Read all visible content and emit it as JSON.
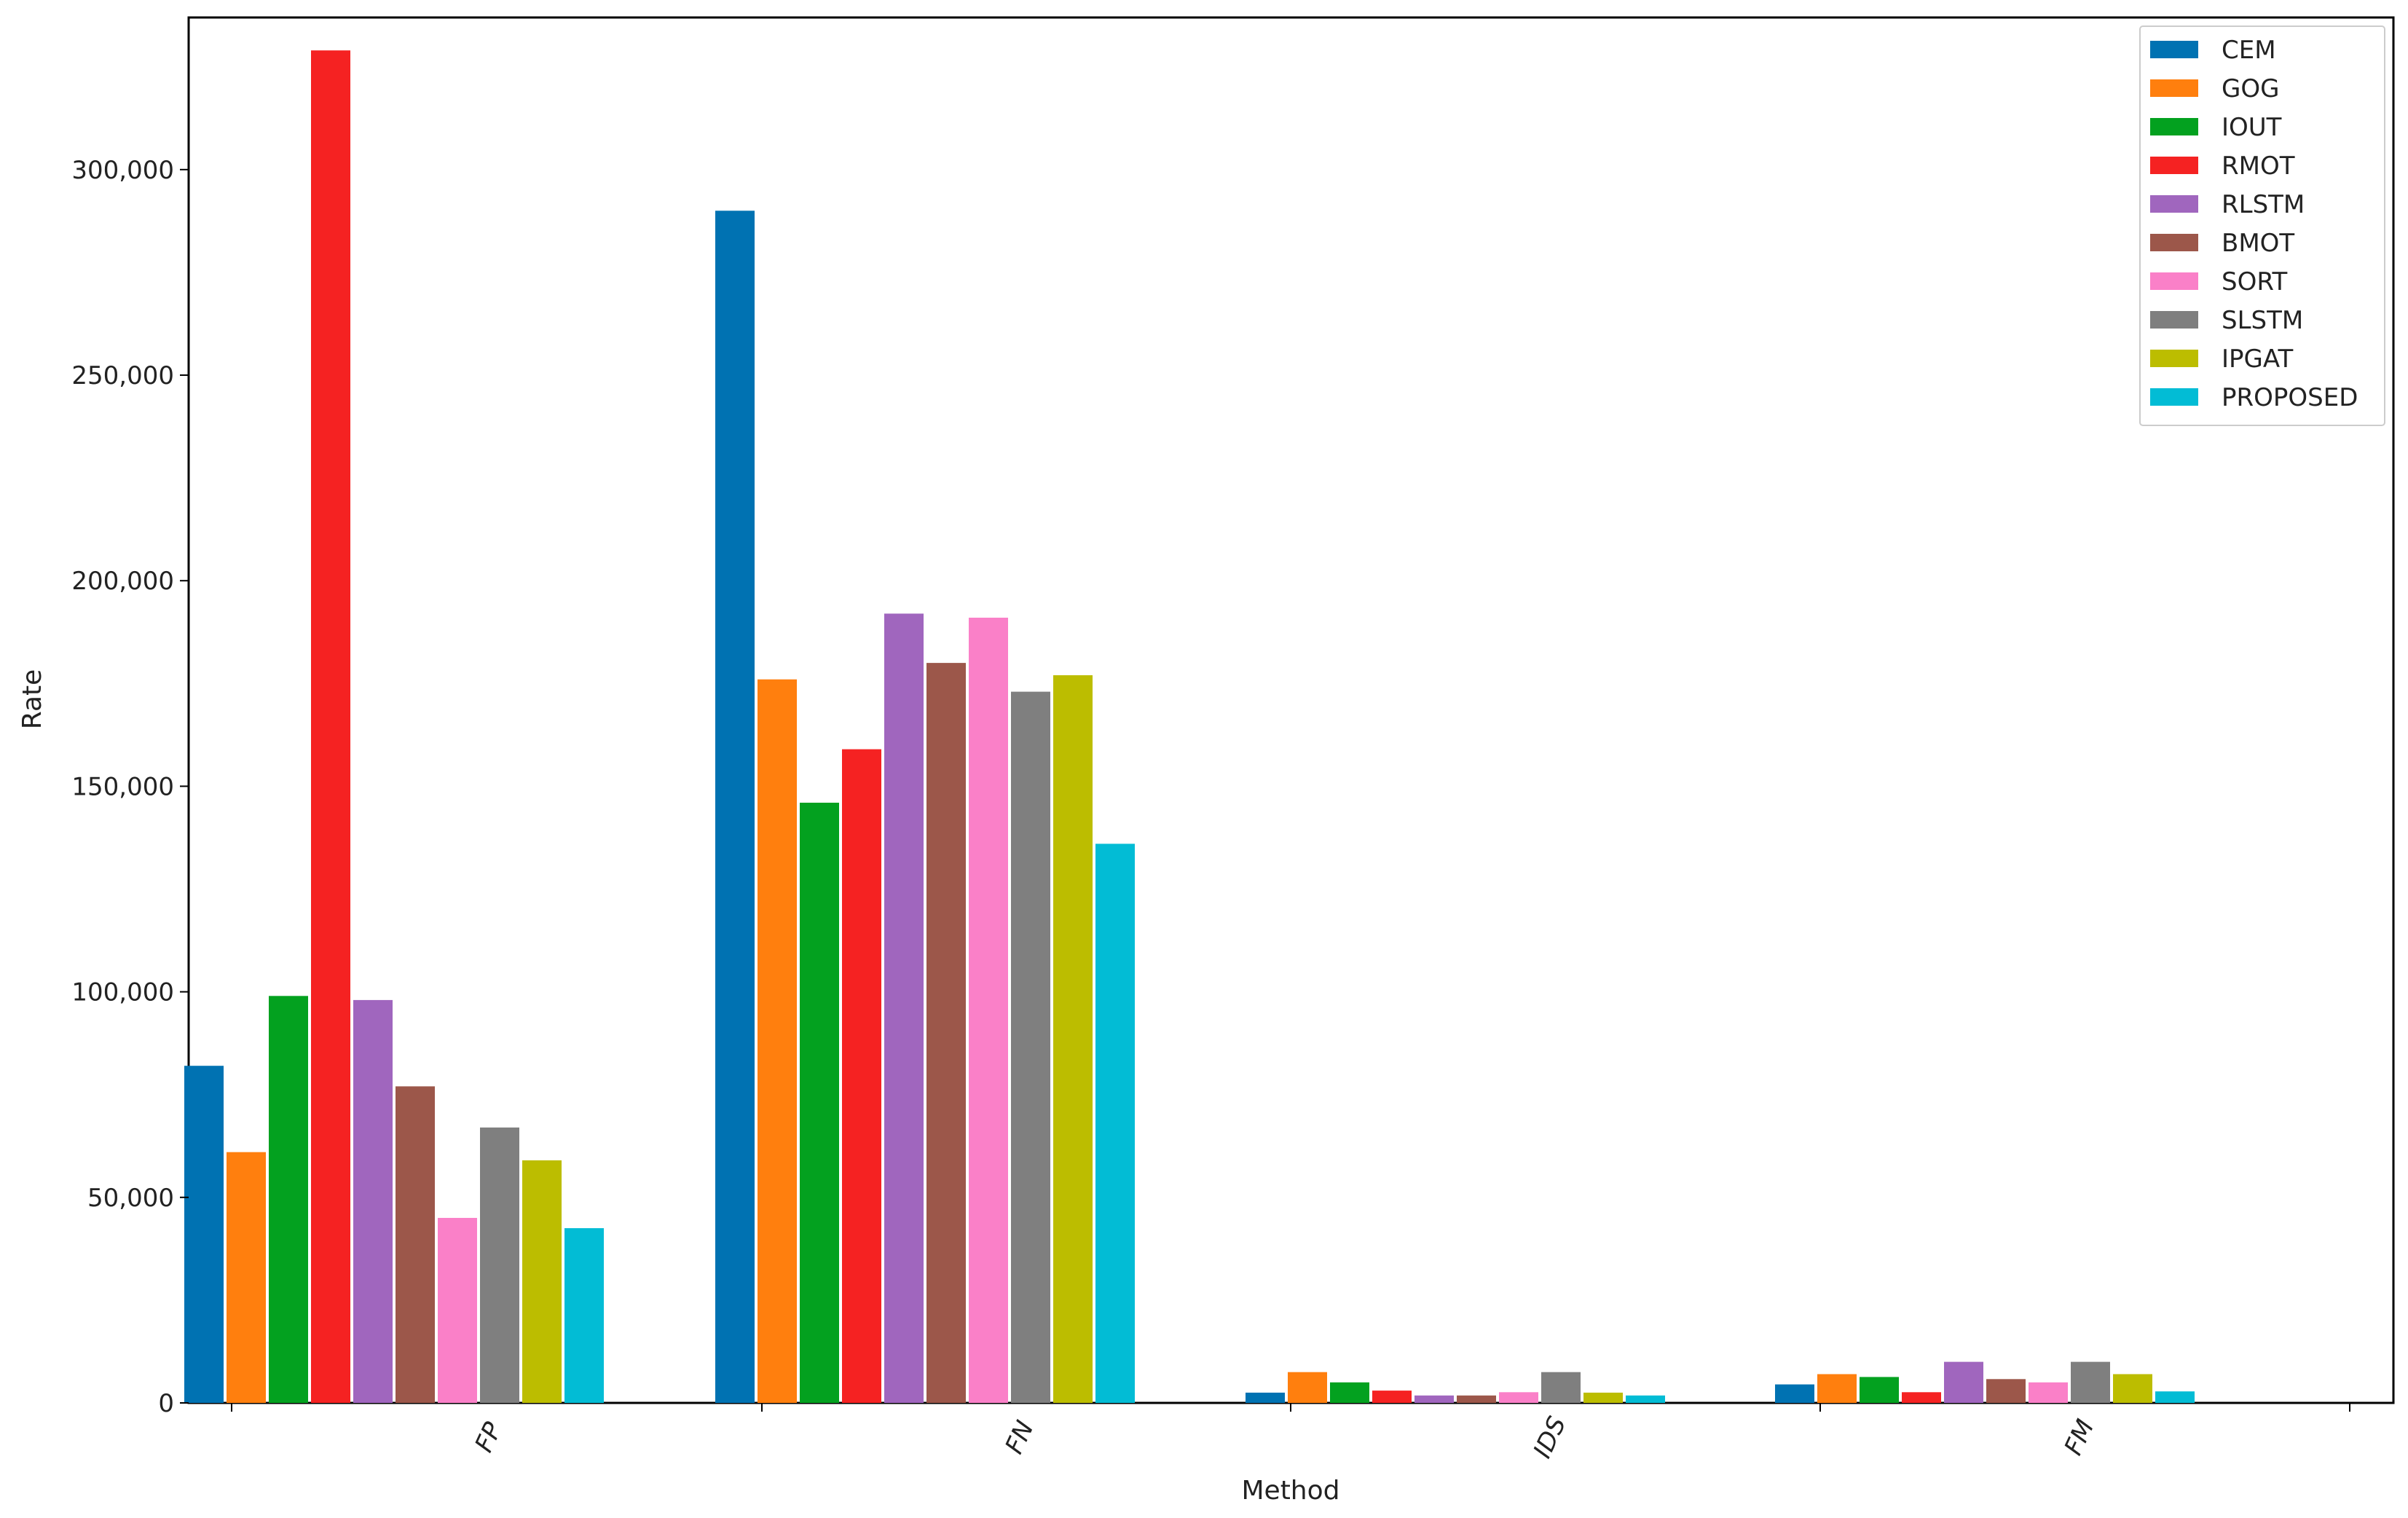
{
  "chart_data": {
    "type": "bar",
    "title": "",
    "xlabel": "Method",
    "ylabel": "Rate",
    "ylim": [
      0,
      337000
    ],
    "yticks": [
      0,
      50000,
      100000,
      150000,
      200000,
      250000,
      300000
    ],
    "ytick_labels": [
      "0",
      "50,000",
      "100,000",
      "150,000",
      "200,000",
      "250,000",
      "300,000"
    ],
    "categories": [
      "FP",
      "FN",
      "IDS",
      "FM"
    ],
    "legend_position": "top-right",
    "grid": false,
    "series": [
      {
        "name": "CEM",
        "color": "#0072b2",
        "values": [
          82000,
          290000,
          2500,
          4500
        ]
      },
      {
        "name": "GOG",
        "color": "#ff7f0e",
        "values": [
          61000,
          176000,
          7500,
          7000
        ]
      },
      {
        "name": "IOUT",
        "color": "#03a11f",
        "values": [
          99000,
          146000,
          5000,
          6300
        ]
      },
      {
        "name": "RMOT",
        "color": "#f52222",
        "values": [
          329000,
          159000,
          3000,
          2600
        ]
      },
      {
        "name": "RLSTM",
        "color": "#a066be",
        "values": [
          98000,
          192000,
          1800,
          10000
        ]
      },
      {
        "name": "BMOT",
        "color": "#9c574a",
        "values": [
          77000,
          180000,
          1800,
          5800
        ]
      },
      {
        "name": "SORT",
        "color": "#fa80c8",
        "values": [
          45000,
          191000,
          2600,
          5000
        ]
      },
      {
        "name": "SLSTM",
        "color": "#7f7f7f",
        "values": [
          67000,
          173000,
          7500,
          10000
        ]
      },
      {
        "name": "IPGAT",
        "color": "#bcbd00",
        "values": [
          59000,
          177000,
          2500,
          7000
        ]
      },
      {
        "name": "PROPOSED",
        "color": "#02bcd5",
        "values": [
          42500,
          136000,
          1800,
          2800
        ]
      }
    ]
  }
}
